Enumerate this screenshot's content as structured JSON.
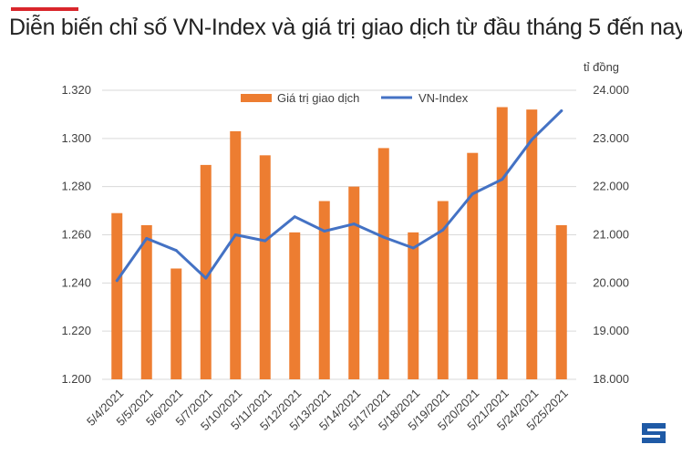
{
  "header": {
    "title": "Diễn biến chỉ số VN-Index và giá trị giao dịch từ đầu tháng 5 đến nay",
    "accent_color": "#d9262b"
  },
  "chart_data": {
    "type": "bar+line",
    "title": "Diễn biến chỉ số VN-Index và giá trị giao dịch từ đầu tháng 5 đến nay",
    "categories": [
      "5/4/2021",
      "5/5/2021",
      "5/6/2021",
      "5/7/2021",
      "5/10/2021",
      "5/11/2021",
      "5/12/2021",
      "5/13/2021",
      "5/14/2021",
      "5/17/2021",
      "5/18/2021",
      "5/19/2021",
      "5/20/2021",
      "5/21/2021",
      "5/24/2021",
      "5/25/2021"
    ],
    "series": [
      {
        "name": "Giá trị giao dịch",
        "type": "bar",
        "axis": "right",
        "color": "#ed7d31",
        "values": [
          21450,
          21200,
          20300,
          22450,
          23150,
          22650,
          21050,
          21700,
          22000,
          22800,
          21050,
          21700,
          22700,
          23650,
          23600,
          21200
        ]
      },
      {
        "name": "VN-Index",
        "type": "line",
        "axis": "left",
        "color": "#4472c4",
        "values": [
          1241.0,
          1258.5,
          1253.5,
          1242.0,
          1260.0,
          1257.5,
          1267.5,
          1261.5,
          1264.5,
          1259.0,
          1254.5,
          1262.0,
          1277.0,
          1283.0,
          1299.5,
          1311.5
        ]
      }
    ],
    "y_left": {
      "range": [
        1200,
        1320
      ],
      "ticks": [
        "1.200",
        "1.220",
        "1.240",
        "1.260",
        "1.280",
        "1.300",
        "1.320"
      ],
      "tick_values": [
        1200,
        1220,
        1240,
        1260,
        1280,
        1300,
        1320
      ]
    },
    "y_right": {
      "label": "tỉ đồng",
      "range": [
        18000,
        24000
      ],
      "ticks": [
        "18.000",
        "19.000",
        "20.000",
        "21.000",
        "22.000",
        "23.000",
        "24.000"
      ],
      "tick_values": [
        18000,
        19000,
        20000,
        21000,
        22000,
        23000,
        24000
      ]
    },
    "grid": true,
    "legend": "top-center"
  }
}
